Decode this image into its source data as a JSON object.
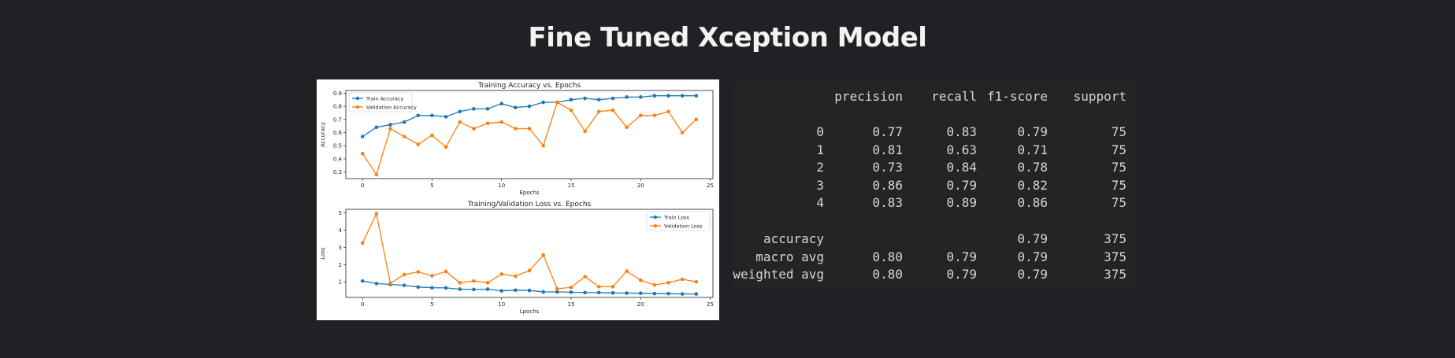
{
  "page": {
    "title": "Fine Tuned Xception Model"
  },
  "chart_data": [
    {
      "type": "line",
      "title": "Training Accuracy vs. Epochs",
      "xlabel": "Epochs",
      "ylabel": "Accuracy",
      "xlim": [
        -1.2,
        25.2
      ],
      "ylim": [
        0.25,
        0.92
      ],
      "xticks": [
        0,
        5,
        10,
        15,
        20,
        25
      ],
      "xtick_labels": [
        "0",
        "5",
        "10",
        "15",
        "20",
        "25"
      ],
      "yticks": [
        0.3,
        0.4,
        0.5,
        0.6,
        0.7,
        0.8,
        0.9
      ],
      "ytick_labels": [
        "0.3",
        "0.4",
        "0.5",
        "0.6",
        "0.7",
        "0.8",
        "0.9"
      ],
      "legend": "top-left",
      "x": [
        0,
        1,
        2,
        3,
        4,
        5,
        6,
        7,
        8,
        9,
        10,
        11,
        12,
        13,
        14,
        15,
        16,
        17,
        18,
        19,
        20,
        21,
        22,
        23,
        24
      ],
      "series": [
        {
          "name": "Train Accuracy",
          "color": "#1f77b4",
          "values": [
            0.57,
            0.64,
            0.66,
            0.68,
            0.73,
            0.73,
            0.72,
            0.76,
            0.78,
            0.78,
            0.82,
            0.79,
            0.8,
            0.83,
            0.83,
            0.85,
            0.86,
            0.85,
            0.86,
            0.87,
            0.87,
            0.88,
            0.88,
            0.88,
            0.88
          ]
        },
        {
          "name": "Validation Accuracy",
          "color": "#ff7f0e",
          "values": [
            0.44,
            0.28,
            0.63,
            0.57,
            0.51,
            0.58,
            0.49,
            0.68,
            0.63,
            0.67,
            0.68,
            0.63,
            0.63,
            0.5,
            0.83,
            0.77,
            0.61,
            0.76,
            0.77,
            0.64,
            0.73,
            0.73,
            0.76,
            0.6,
            0.7
          ]
        }
      ]
    },
    {
      "type": "line",
      "title": "Training/Validation Loss vs. Epochs",
      "xlabel": "Lpochs",
      "ylabel": "Loss",
      "xlim": [
        -1.2,
        25.2
      ],
      "ylim": [
        0.1,
        5.2
      ],
      "xticks": [
        0,
        5,
        10,
        15,
        20,
        25
      ],
      "xtick_labels": [
        "0",
        "5",
        "10",
        "15",
        "20",
        "25"
      ],
      "yticks": [
        1,
        2,
        3,
        4,
        5
      ],
      "ytick_labels": [
        "1",
        "2",
        "3",
        "4",
        "5"
      ],
      "legend": "top-right",
      "x": [
        0,
        1,
        2,
        3,
        4,
        5,
        6,
        7,
        8,
        9,
        10,
        11,
        12,
        13,
        14,
        15,
        16,
        17,
        18,
        19,
        20,
        21,
        22,
        23,
        24
      ],
      "series": [
        {
          "name": "Train Loss",
          "color": "#1f77b4",
          "values": [
            1.05,
            0.9,
            0.85,
            0.8,
            0.7,
            0.66,
            0.65,
            0.58,
            0.56,
            0.58,
            0.48,
            0.52,
            0.5,
            0.42,
            0.42,
            0.4,
            0.38,
            0.38,
            0.36,
            0.35,
            0.34,
            0.32,
            0.32,
            0.3,
            0.3
          ]
        },
        {
          "name": "Validation Loss",
          "color": "#ff7f0e",
          "values": [
            3.25,
            4.95,
            0.92,
            1.42,
            1.58,
            1.35,
            1.6,
            0.95,
            1.05,
            0.95,
            1.45,
            1.33,
            1.65,
            2.55,
            0.6,
            0.68,
            1.3,
            0.72,
            0.72,
            1.62,
            1.1,
            0.82,
            0.95,
            1.15,
            1.0
          ]
        }
      ]
    }
  ],
  "report": {
    "header": {
      "precision": "precision",
      "recall": "recall",
      "f1": "f1-score",
      "support": "support"
    },
    "rows": [
      {
        "label": "0",
        "precision": "0.77",
        "recall": "0.83",
        "f1": "0.79",
        "support": "75"
      },
      {
        "label": "1",
        "precision": "0.81",
        "recall": "0.63",
        "f1": "0.71",
        "support": "75"
      },
      {
        "label": "2",
        "precision": "0.73",
        "recall": "0.84",
        "f1": "0.78",
        "support": "75"
      },
      {
        "label": "3",
        "precision": "0.86",
        "recall": "0.79",
        "f1": "0.82",
        "support": "75"
      },
      {
        "label": "4",
        "precision": "0.83",
        "recall": "0.89",
        "f1": "0.86",
        "support": "75"
      }
    ],
    "summary": [
      {
        "label": "accuracy",
        "precision": "",
        "recall": "",
        "f1": "0.79",
        "support": "375"
      },
      {
        "label": "macro avg",
        "precision": "0.80",
        "recall": "0.79",
        "f1": "0.79",
        "support": "375"
      },
      {
        "label": "weighted avg",
        "precision": "0.80",
        "recall": "0.79",
        "f1": "0.79",
        "support": "375"
      }
    ]
  }
}
